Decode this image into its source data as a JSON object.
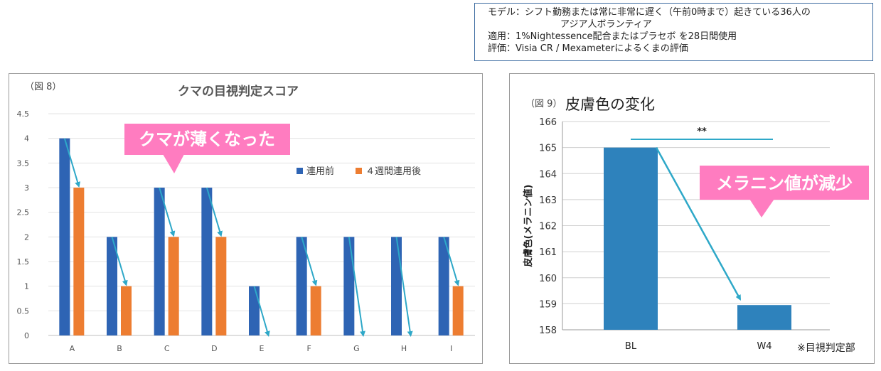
{
  "info": {
    "model_label": "モデル：",
    "model_text": "シフト勤務または常に非常に遅く（午前0時まで）起きている36人の",
    "model_text2": "アジア人ボランティア",
    "apply_label": "適用：",
    "apply_text": "1%Nightessence配合またはプラセボ を28日間使用",
    "eval_label": "評価：",
    "eval_text": "Visia CR / Mexameterによるくまの評価"
  },
  "chart_data": [
    {
      "type": "bar",
      "figure_label": "（図 8）",
      "title": "クマの目視判定スコア",
      "callout": "クマが薄くなった",
      "categories": [
        "A",
        "B",
        "C",
        "D",
        "E",
        "F",
        "G",
        "H",
        "I"
      ],
      "series": [
        {
          "name": "連用前",
          "color": "#2e64b4",
          "values": [
            4,
            2,
            3,
            3,
            1,
            2,
            2,
            2,
            2
          ]
        },
        {
          "name": "４週間連用後",
          "color": "#ed7d31",
          "values": [
            3,
            1,
            2,
            2,
            0,
            1,
            0,
            0,
            1
          ]
        }
      ],
      "yticks": [
        "0",
        "0.5",
        "1",
        "1.5",
        "2",
        "2.5",
        "3",
        "3.5",
        "4",
        "4.5"
      ],
      "ylim": [
        0,
        4.5
      ],
      "grid": true,
      "legend": "right",
      "arrow_color": "#2ea8c8"
    },
    {
      "type": "bar",
      "figure_label": "（図 9）",
      "title": "皮膚色の変化",
      "ylabel": "皮膚色(メラニン値)",
      "callout": "メラニン値が減少",
      "categories": [
        "BL",
        "W4"
      ],
      "values": [
        165,
        158.95
      ],
      "color": "#2e82bc",
      "yticks": [
        "158",
        "159",
        "160",
        "161",
        "162",
        "163",
        "164",
        "165",
        "166"
      ],
      "ylim": [
        158,
        166
      ],
      "significance": "**",
      "footnote": "※目視判定部",
      "grid": true,
      "arrow_color": "#2ea8c8"
    }
  ]
}
